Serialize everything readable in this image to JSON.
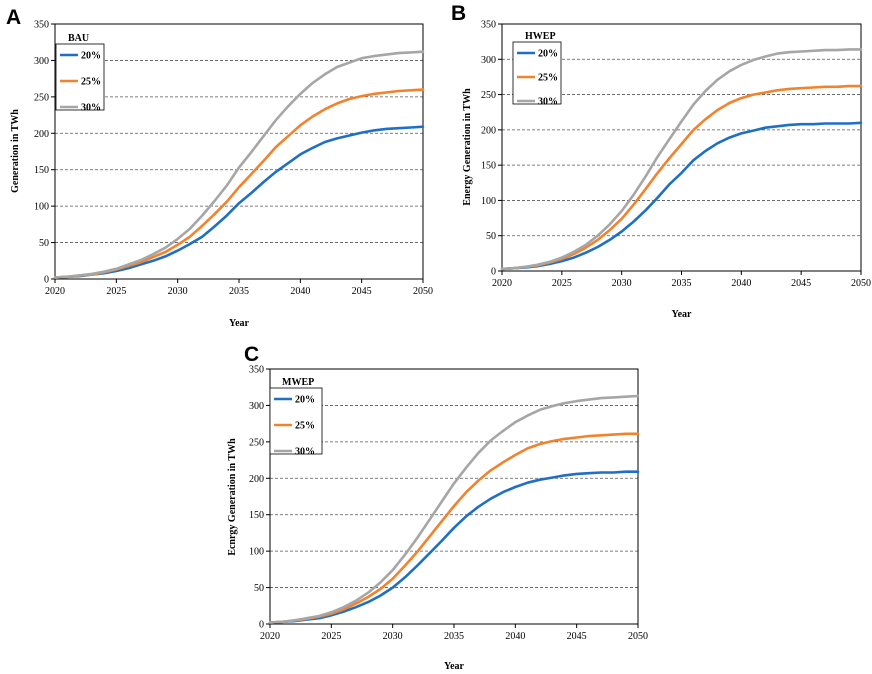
{
  "colors": {
    "20%": "#1f6fc5",
    "25%": "#f2822c",
    "30%": "#a6a6a6"
  },
  "chart_data": [
    {
      "type": "line",
      "panel_label": "A",
      "legend_title": "BAU",
      "xlabel": "Year",
      "ylabel": "Generation in TWh",
      "xlim": [
        2020,
        2050
      ],
      "ylim": [
        0,
        350
      ],
      "xticks": [
        2020,
        2025,
        2030,
        2035,
        2040,
        2045,
        2050
      ],
      "yticks": [
        0,
        50,
        100,
        150,
        200,
        250,
        300,
        350
      ],
      "x": [
        2020,
        2021,
        2022,
        2023,
        2024,
        2025,
        2026,
        2027,
        2028,
        2029,
        2030,
        2031,
        2032,
        2033,
        2034,
        2035,
        2036,
        2037,
        2038,
        2039,
        2040,
        2041,
        2042,
        2043,
        2044,
        2045,
        2046,
        2047,
        2048,
        2049,
        2050
      ],
      "series": [
        {
          "name": "20%",
          "values": [
            2,
            3,
            4,
            6,
            8,
            11,
            15,
            20,
            25,
            31,
            39,
            48,
            58,
            72,
            87,
            104,
            118,
            133,
            147,
            159,
            171,
            180,
            188,
            193,
            197,
            201,
            204,
            206,
            207,
            208,
            209
          ]
        },
        {
          "name": "25%",
          "values": [
            2,
            3,
            5,
            6,
            9,
            13,
            18,
            23,
            30,
            37,
            47,
            58,
            73,
            89,
            106,
            126,
            144,
            162,
            181,
            196,
            211,
            223,
            233,
            241,
            247,
            251,
            254,
            256,
            258,
            259,
            260
          ]
        },
        {
          "name": "30%",
          "values": [
            2,
            3,
            5,
            7,
            10,
            14,
            20,
            26,
            34,
            43,
            55,
            69,
            87,
            107,
            128,
            153,
            174,
            196,
            218,
            237,
            254,
            269,
            281,
            291,
            297,
            303,
            306,
            308,
            310,
            311,
            312
          ]
        }
      ]
    },
    {
      "type": "line",
      "panel_label": "B",
      "legend_title": "HWEP",
      "xlabel": "Year",
      "ylabel": "Energy Generation in TWh",
      "xlim": [
        2020,
        2050
      ],
      "ylim": [
        0,
        350
      ],
      "xticks": [
        2020,
        2025,
        2030,
        2035,
        2040,
        2045,
        2050
      ],
      "yticks": [
        0,
        50,
        100,
        150,
        200,
        250,
        300,
        350
      ],
      "x": [
        2020,
        2021,
        2022,
        2023,
        2024,
        2025,
        2026,
        2027,
        2028,
        2029,
        2030,
        2031,
        2032,
        2033,
        2034,
        2035,
        2036,
        2037,
        2038,
        2039,
        2040,
        2041,
        2042,
        2043,
        2044,
        2045,
        2046,
        2047,
        2048,
        2049,
        2050
      ],
      "series": [
        {
          "name": "20%",
          "values": [
            3,
            4,
            5,
            7,
            10,
            14,
            19,
            26,
            34,
            44,
            56,
            70,
            86,
            104,
            123,
            139,
            157,
            170,
            181,
            189,
            195,
            199,
            203,
            205,
            207,
            208,
            208,
            209,
            209,
            209,
            210
          ]
        },
        {
          "name": "25%",
          "values": [
            3,
            4,
            6,
            8,
            12,
            17,
            24,
            33,
            44,
            58,
            74,
            94,
            116,
            139,
            160,
            180,
            200,
            215,
            228,
            238,
            245,
            250,
            253,
            256,
            258,
            259,
            260,
            261,
            261,
            262,
            262
          ]
        },
        {
          "name": "30%",
          "values": [
            3,
            4,
            6,
            9,
            13,
            19,
            27,
            37,
            50,
            66,
            85,
            108,
            134,
            162,
            187,
            212,
            236,
            255,
            271,
            283,
            292,
            299,
            304,
            308,
            310,
            311,
            312,
            313,
            313,
            314,
            314
          ]
        }
      ]
    },
    {
      "type": "line",
      "panel_label": "C",
      "legend_title": "MWEP",
      "xlabel": "Year",
      "ylabel": "Ecnrgy Generation in TWh",
      "xlim": [
        2020,
        2050
      ],
      "ylim": [
        0,
        350
      ],
      "xticks": [
        2020,
        2025,
        2030,
        2035,
        2040,
        2045,
        2050
      ],
      "yticks": [
        0,
        50,
        100,
        150,
        200,
        250,
        300,
        350
      ],
      "x": [
        2020,
        2021,
        2022,
        2023,
        2024,
        2025,
        2026,
        2027,
        2028,
        2029,
        2030,
        2031,
        2032,
        2033,
        2034,
        2035,
        2036,
        2037,
        2038,
        2039,
        2040,
        2041,
        2042,
        2043,
        2044,
        2045,
        2046,
        2047,
        2048,
        2049,
        2050
      ],
      "series": [
        {
          "name": "20%",
          "values": [
            2,
            3,
            4,
            6,
            8,
            12,
            17,
            23,
            30,
            39,
            50,
            64,
            80,
            97,
            114,
            132,
            148,
            161,
            172,
            181,
            188,
            194,
            198,
            201,
            204,
            206,
            207,
            208,
            208,
            209,
            209
          ]
        },
        {
          "name": "25%",
          "values": [
            2,
            3,
            5,
            7,
            10,
            14,
            20,
            28,
            37,
            48,
            62,
            80,
            99,
            120,
            141,
            162,
            181,
            197,
            211,
            222,
            232,
            241,
            247,
            251,
            254,
            256,
            258,
            259,
            260,
            261,
            261
          ]
        },
        {
          "name": "30%",
          "values": [
            2,
            3,
            5,
            8,
            11,
            16,
            23,
            32,
            43,
            57,
            74,
            95,
            118,
            143,
            168,
            193,
            215,
            235,
            252,
            265,
            277,
            286,
            294,
            299,
            303,
            306,
            308,
            310,
            311,
            312,
            313
          ]
        }
      ]
    }
  ]
}
